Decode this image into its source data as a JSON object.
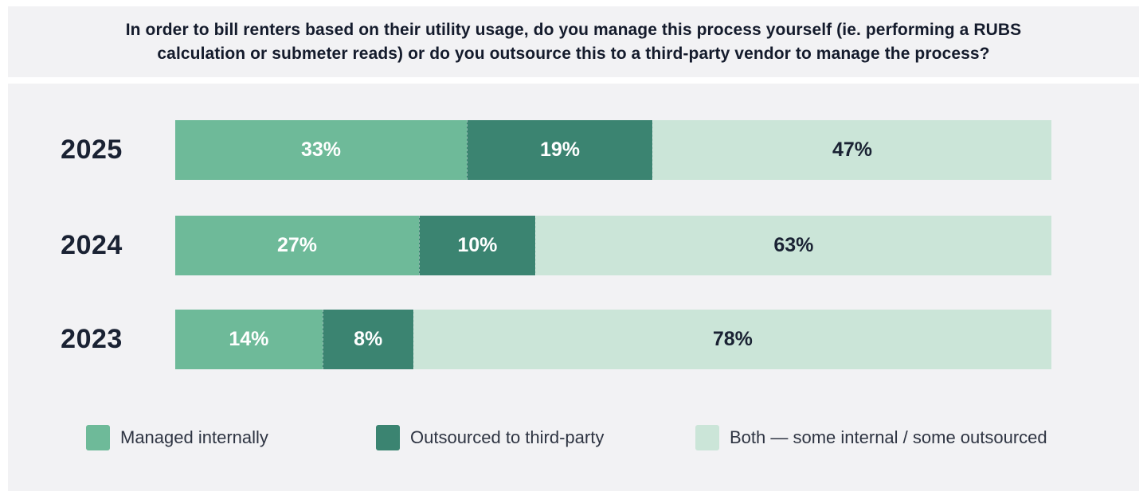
{
  "title": "In order to bill renters based on their utility usage, do you manage this process yourself (ie. performing a RUBS calculation or submeter reads) or do you outsource this to a third-party vendor to manage the process?",
  "colors": {
    "managed_internally": "#6EBA99",
    "outsourced_third_party": "#3B8471",
    "both_mixed": "#CBE5D8",
    "panel_background": "#F2F2F4",
    "dark_text": "#1A2233",
    "light_text": "#FFFFFF"
  },
  "chart_data": {
    "type": "bar",
    "orientation": "horizontal-stacked",
    "title": "In order to bill renters based on their utility usage, do you manage this process yourself (ie. performing a RUBS calculation or submeter reads) or do you outsource this to a third-party vendor to manage the process?",
    "categories": [
      "2025",
      "2024",
      "2023"
    ],
    "series": [
      {
        "name": "Managed internally",
        "color": "#6EBA99",
        "values": [
          33,
          27,
          14
        ]
      },
      {
        "name": "Outsourced to third-party",
        "color": "#3B8471",
        "values": [
          19,
          10,
          8
        ]
      },
      {
        "name": "Both — some internal / some outsourced",
        "color": "#CBE5D8",
        "values": [
          47,
          63,
          78
        ]
      }
    ],
    "value_format": "percent",
    "xlim": [
      0,
      100
    ],
    "grid": false,
    "legend_position": "bottom"
  },
  "rows": [
    {
      "year": "2025",
      "segments": [
        {
          "label": "33%",
          "value": 33
        },
        {
          "label": "19%",
          "value": 19
        },
        {
          "label": "47%",
          "value": 47
        }
      ]
    },
    {
      "year": "2024",
      "segments": [
        {
          "label": "27%",
          "value": 27
        },
        {
          "label": "10%",
          "value": 10
        },
        {
          "label": "63%",
          "value": 63
        }
      ]
    },
    {
      "year": "2023",
      "segments": [
        {
          "label": "14%",
          "value": 14
        },
        {
          "label": "8%",
          "value": 8
        },
        {
          "label": "78%",
          "value": 78
        }
      ]
    }
  ],
  "legend": [
    {
      "label": "Managed internally"
    },
    {
      "label": "Outsourced to third-party"
    },
    {
      "label": "Both — some internal / some outsourced"
    }
  ]
}
